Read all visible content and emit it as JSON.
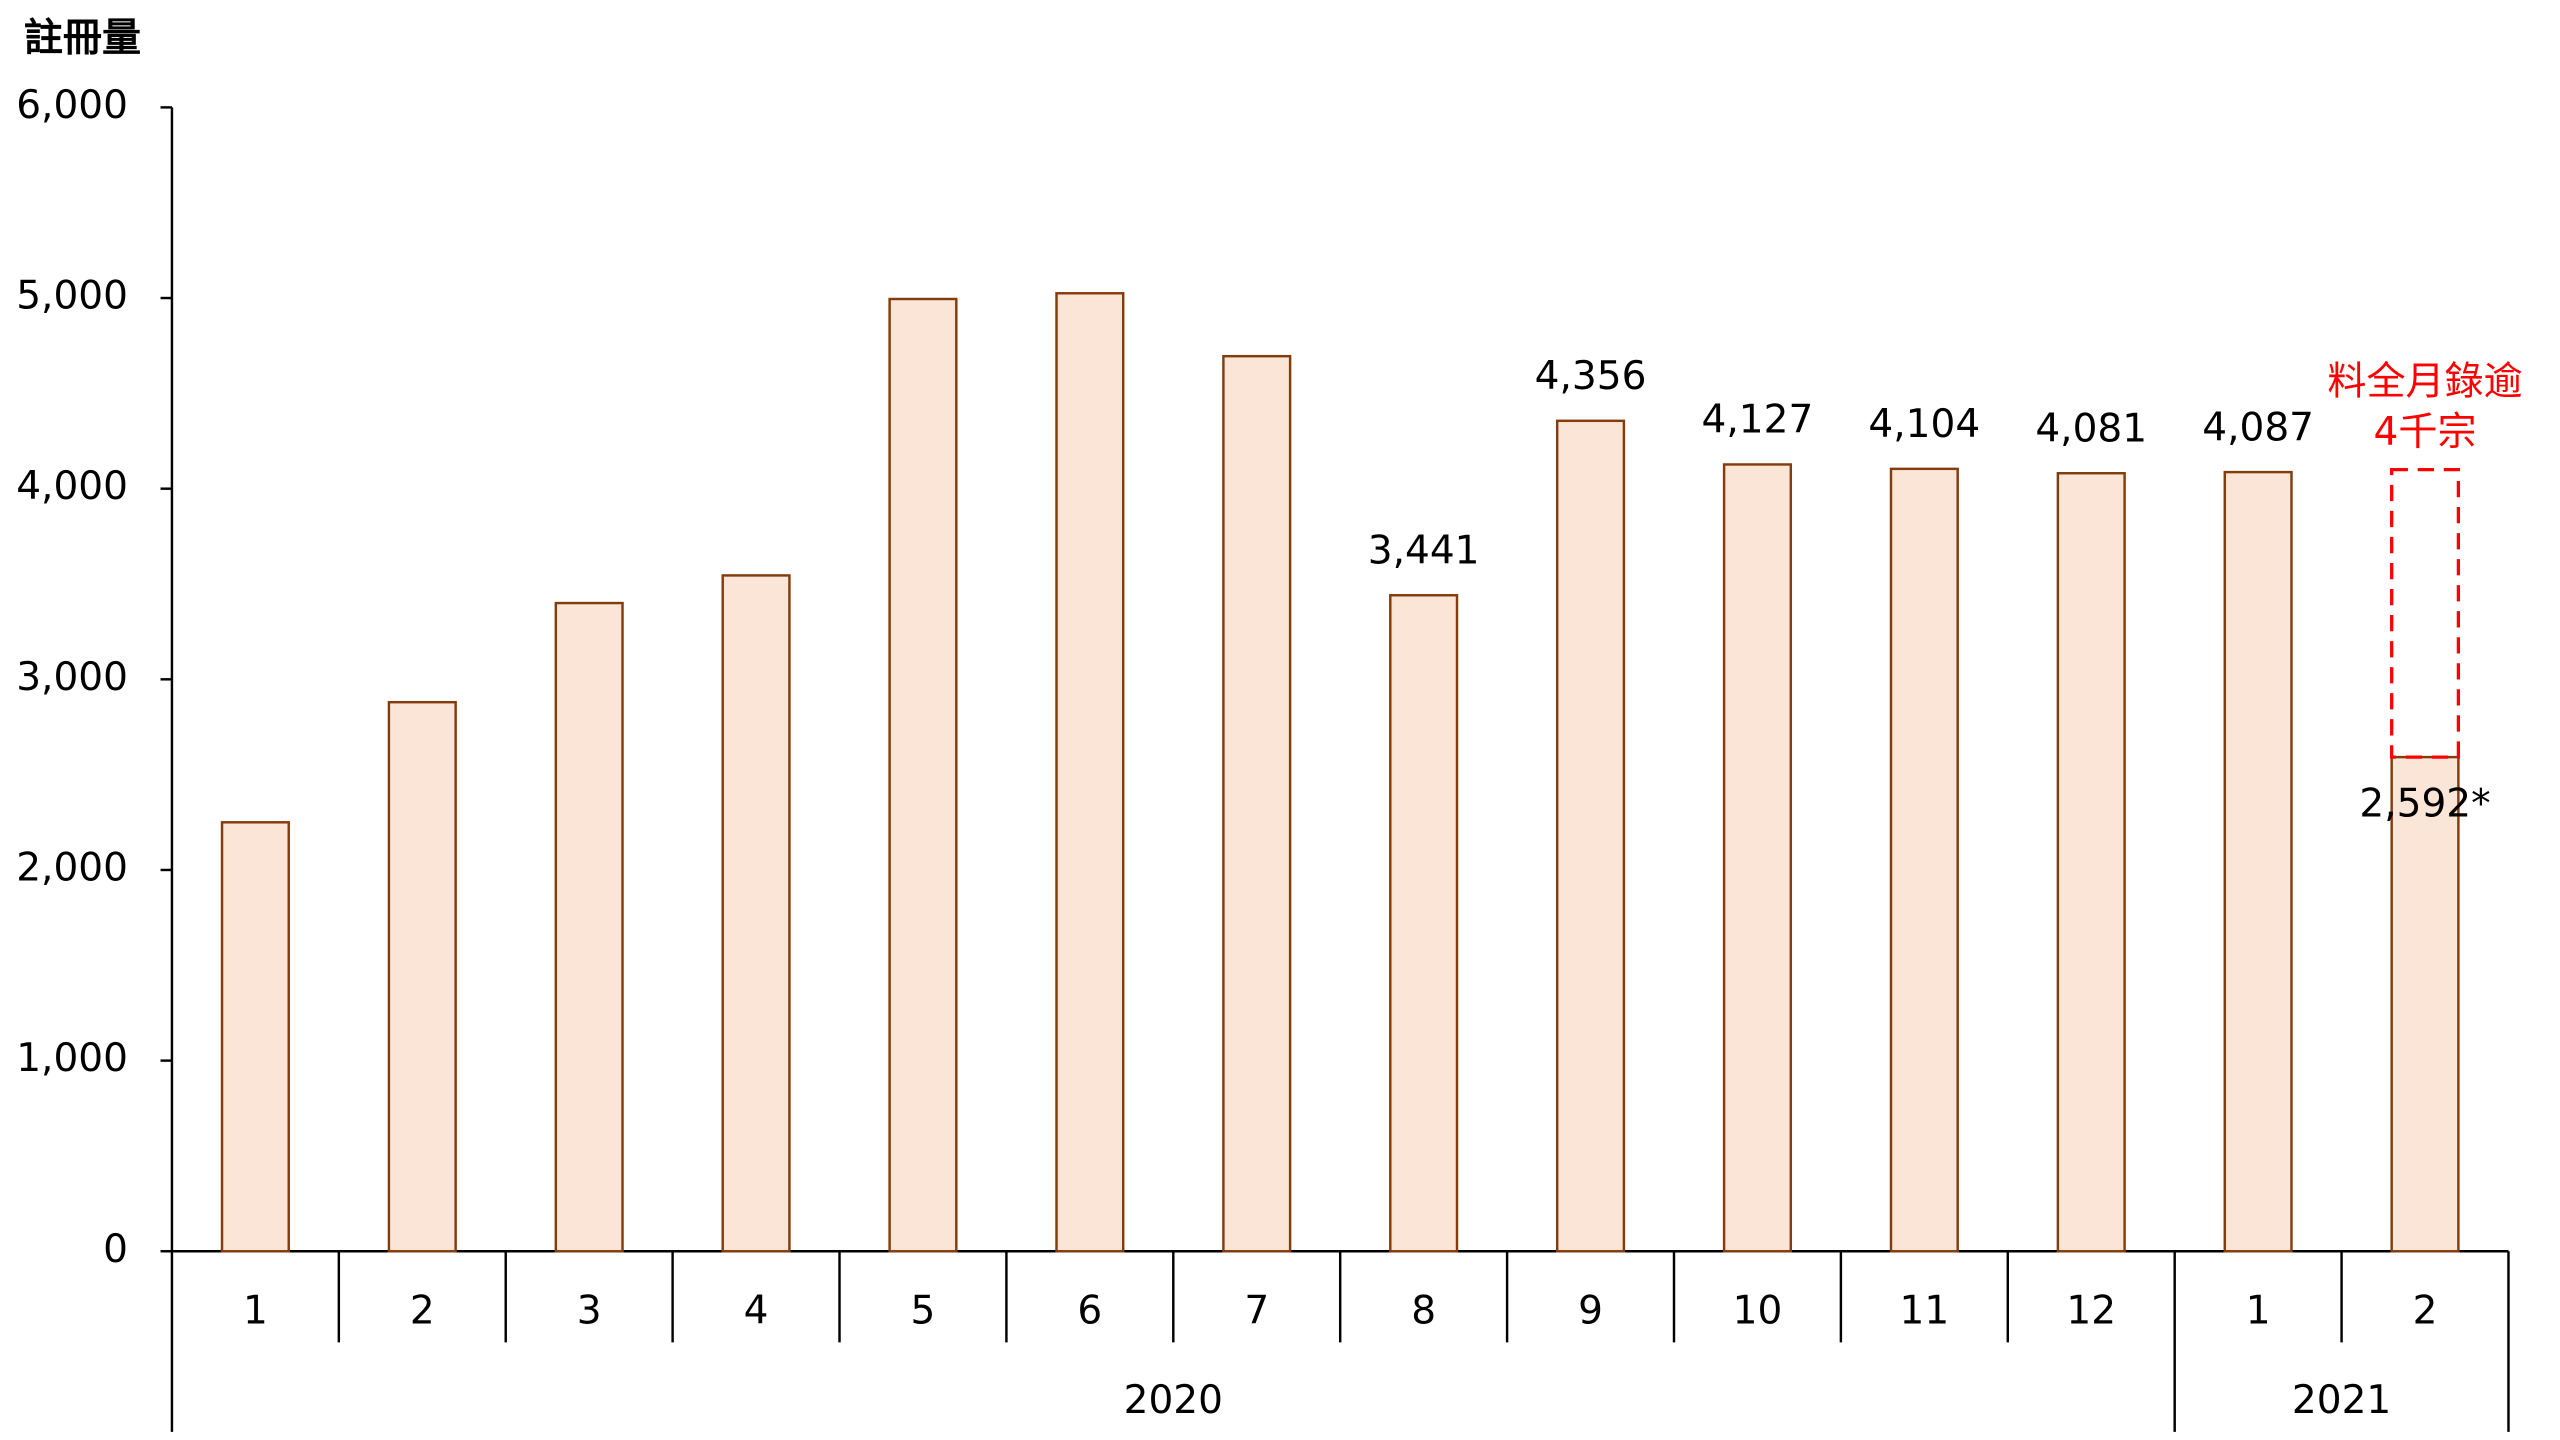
{
  "chart_data": {
    "type": "bar",
    "y_axis_label": "註冊量",
    "categories": [
      "1",
      "2",
      "3",
      "4",
      "5",
      "6",
      "7",
      "8",
      "9",
      "10",
      "11",
      "12",
      "1",
      "2"
    ],
    "years": [
      "2020",
      "2020",
      "2020",
      "2020",
      "2020",
      "2020",
      "2020",
      "2020",
      "2020",
      "2020",
      "2020",
      "2020",
      "2021",
      "2021"
    ],
    "values": [
      2250,
      2880,
      3400,
      3545,
      4995,
      5025,
      4695,
      3441,
      4356,
      4127,
      4104,
      4081,
      4087,
      2592
    ],
    "value_labels": [
      null,
      null,
      null,
      null,
      null,
      null,
      null,
      "3,441",
      "4,356",
      "4,127",
      "4,104",
      "4,081",
      "4,087",
      "2,592*"
    ],
    "color": "#fbe5d6",
    "edge_color": "#843c0c",
    "ylim": [
      0,
      6000
    ],
    "yticks": [
      0,
      {
        "value": 1000,
        "label": "1,000"
      },
      {
        "value": 2000,
        "label": "2,000"
      },
      {
        "value": 3000,
        "label": "3,000"
      },
      {
        "value": 4000,
        "label": "4,000"
      },
      {
        "value": 5000,
        "label": "5,000"
      },
      {
        "value": 6000,
        "label": "6,000"
      }
    ],
    "annotation": {
      "lines": [
        "料全月錄逾",
        "4千宗"
      ],
      "value": 4100,
      "color": "#ff0000"
    }
  }
}
